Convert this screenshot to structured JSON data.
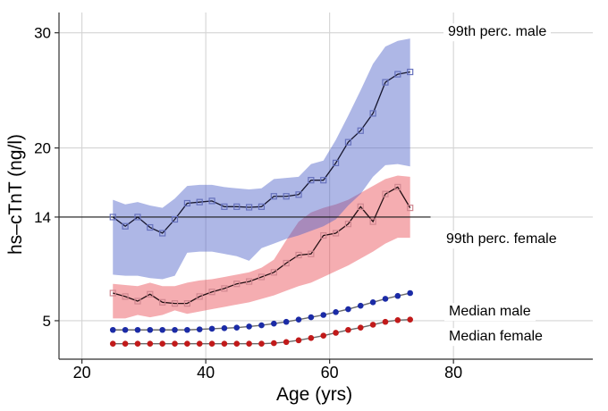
{
  "figure": {
    "background": "#ffffff",
    "y_axis": {
      "label": "hs–cTnT (ng/l)",
      "ticks": [
        30,
        20,
        14,
        5
      ]
    },
    "x_axis": {
      "label": "Age (yrs)",
      "ticks": [
        20,
        40,
        60,
        80
      ]
    },
    "annotations": {
      "male99": "99th perc. male",
      "female99": "99th perc. female",
      "median_male": "Median male",
      "median_female": "Median female"
    }
  },
  "colors": {
    "grid": "#d4d4d4",
    "spine": "#2f2f2f",
    "reference_line": "#1a1a1a",
    "band_male": "rgba(75,95,200,0.45)",
    "band_female": "rgba(230,60,70,0.42)",
    "line_male99": "#16162e",
    "line_female99": "#241014",
    "marker_male99": "#6671bd",
    "marker_female99": "#d08790",
    "median_line": "#6a6a6a",
    "median_male_dot": "#1b2ba6",
    "median_female_dot": "#c11a1a",
    "text": "#000000"
  },
  "chart_data": {
    "type": "line",
    "title": "",
    "xlabel": "Age (yrs)",
    "ylabel": "hs-cTnT (ng/l)",
    "xlim": [
      16.3,
      102.5
    ],
    "ylim": [
      1.66,
      31.76
    ],
    "x_ticks": [
      20,
      40,
      60,
      80
    ],
    "y_ticks": [
      30,
      20,
      14,
      5
    ],
    "grid": true,
    "legend_position": "right-annotations",
    "reference_line": {
      "value": 14,
      "x_start": 16.3,
      "x_end": 76.3
    },
    "x": [
      25,
      27,
      29,
      31,
      33,
      35,
      37,
      39,
      41,
      43,
      45,
      47,
      49,
      51,
      53,
      55,
      57,
      59,
      61,
      63,
      65,
      67,
      69,
      71,
      73
    ],
    "series": [
      {
        "name": "99th perc. male",
        "marker": "open-square",
        "values": [
          14.0,
          13.2,
          14.0,
          13.1,
          12.6,
          13.8,
          15.2,
          15.3,
          15.4,
          14.9,
          14.9,
          14.85,
          14.9,
          15.8,
          15.8,
          15.95,
          17.2,
          17.2,
          18.7,
          20.5,
          21.5,
          23.0,
          25.7,
          26.4,
          26.6
        ],
        "ci_upper": [
          15.5,
          15.1,
          15.3,
          15.0,
          14.8,
          15.6,
          16.7,
          16.8,
          16.8,
          16.6,
          16.5,
          16.4,
          16.5,
          17.3,
          17.4,
          17.5,
          18.6,
          18.9,
          20.7,
          22.8,
          25.0,
          27.3,
          28.8,
          29.3,
          29.5
        ],
        "ci_lower": [
          9.0,
          8.9,
          8.9,
          8.7,
          8.6,
          8.9,
          10.9,
          11.0,
          11.0,
          10.8,
          10.6,
          10.2,
          11.3,
          11.7,
          12.1,
          12.4,
          12.8,
          13.2,
          13.8,
          15.0,
          16.0,
          17.5,
          18.5,
          18.6,
          18.4
        ]
      },
      {
        "name": "99th perc. female",
        "marker": "open-square",
        "values": [
          7.4,
          7.1,
          6.7,
          7.3,
          6.6,
          6.5,
          6.5,
          7.1,
          7.5,
          7.8,
          8.2,
          8.4,
          8.8,
          9.2,
          10.0,
          10.7,
          10.8,
          12.4,
          12.6,
          13.4,
          14.9,
          13.6,
          16.0,
          16.6,
          14.8
        ],
        "ci_upper": [
          8.2,
          8.1,
          8.0,
          8.3,
          8.0,
          8.0,
          8.3,
          8.5,
          8.6,
          8.8,
          9.0,
          9.2,
          9.6,
          10.3,
          12.0,
          13.6,
          14.4,
          14.8,
          15.1,
          15.5,
          16.1,
          16.7,
          17.3,
          17.6,
          17.5
        ],
        "ci_lower": [
          5.2,
          5.2,
          5.5,
          5.3,
          5.5,
          5.9,
          5.6,
          5.8,
          6.0,
          6.2,
          6.4,
          6.6,
          6.9,
          7.2,
          7.6,
          8.0,
          8.3,
          8.8,
          9.3,
          9.8,
          10.4,
          11.0,
          11.7,
          12.2,
          12.2
        ]
      },
      {
        "name": "Median male",
        "marker": "filled-circle",
        "values": [
          4.2,
          4.2,
          4.2,
          4.2,
          4.2,
          4.2,
          4.2,
          4.25,
          4.3,
          4.35,
          4.4,
          4.5,
          4.6,
          4.75,
          4.9,
          5.1,
          5.3,
          5.5,
          5.75,
          6.0,
          6.3,
          6.6,
          6.9,
          7.15,
          7.4
        ]
      },
      {
        "name": "Median female",
        "marker": "filled-circle",
        "values": [
          3.0,
          3.0,
          3.0,
          3.0,
          3.0,
          3.0,
          3.0,
          3.0,
          3.0,
          3.0,
          3.0,
          3.0,
          3.0,
          3.05,
          3.15,
          3.3,
          3.5,
          3.7,
          3.95,
          4.2,
          4.4,
          4.65,
          4.9,
          5.05,
          5.1
        ]
      }
    ]
  }
}
